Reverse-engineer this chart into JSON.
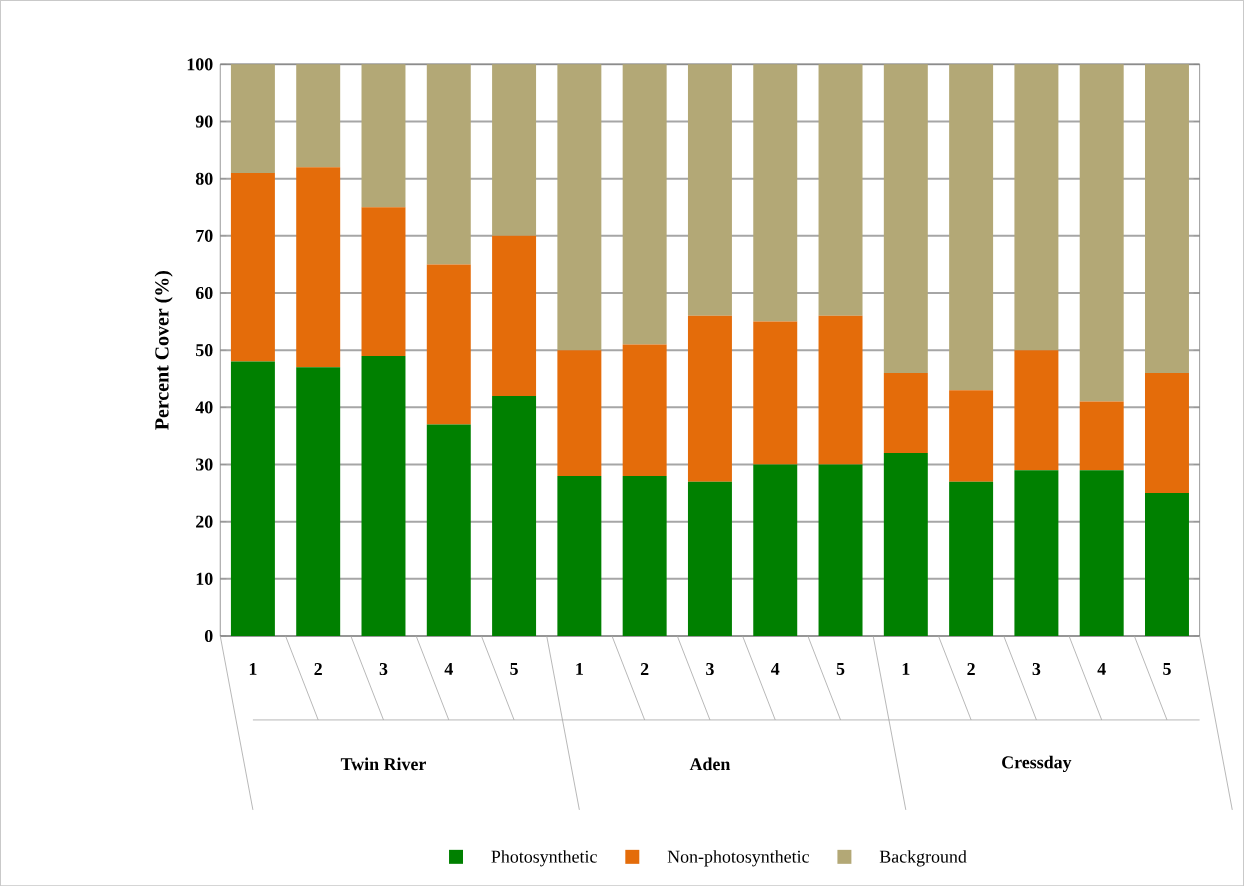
{
  "chart_data": {
    "type": "bar",
    "stacked": true,
    "ylabel": "Percent Cover (%)",
    "categories": [
      "1",
      "2",
      "3",
      "4",
      "5",
      "1",
      "2",
      "3",
      "4",
      "5",
      "1",
      "2",
      "3",
      "4",
      "5"
    ],
    "annotations": [
      "Twin River",
      "Aden",
      "Cressday"
    ],
    "series": [
      {
        "name": "Photosynthetic",
        "color": "#008000",
        "values": [
          48,
          47,
          49,
          37,
          42,
          28,
          28,
          27,
          30,
          30,
          32,
          27,
          29,
          29,
          25
        ]
      },
      {
        "name": "Non-photosynthetic",
        "color": "#e46c0a",
        "values": [
          33,
          35,
          26,
          28,
          28,
          22,
          23,
          29,
          25,
          26,
          14,
          16,
          21,
          12,
          21
        ]
      },
      {
        "name": "Background",
        "color": "#b3a876",
        "values": [
          19,
          18,
          25,
          35,
          30,
          50,
          49,
          44,
          45,
          44,
          54,
          57,
          50,
          59,
          54
        ]
      }
    ],
    "ylim": [
      0,
      100
    ],
    "yticks": [
      0,
      10,
      20,
      30,
      40,
      50,
      60,
      70,
      80,
      90,
      100
    ],
    "grid": "y",
    "legend": "bottom"
  }
}
